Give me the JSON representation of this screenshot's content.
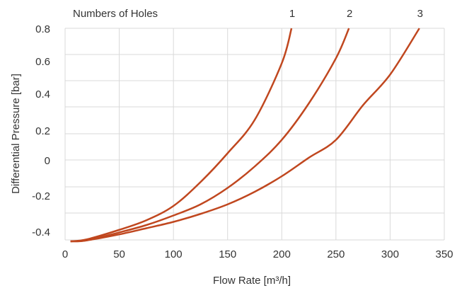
{
  "chart_data": {
    "type": "line",
    "title": "",
    "xlabel": "Flow Rate [m³/h]",
    "ylabel": "Differential Pressure [bar]",
    "legend_title": "Numbers of Holes",
    "xlim": [
      0,
      350
    ],
    "ylim": [
      -0.45,
      0.8
    ],
    "x_ticks": [
      "0",
      "50",
      "100",
      "150",
      "200",
      "250",
      "300",
      "350"
    ],
    "y_ticks": [
      "-0.4",
      "-0.2",
      "0",
      "0.2",
      "0.4",
      "0.6",
      "0.8"
    ],
    "grid": true,
    "line_color": "#c0471f",
    "series": [
      {
        "name": "1",
        "x": [
          5,
          20,
          50,
          75,
          100,
          125,
          150,
          175,
          200,
          209
        ],
        "y": [
          -0.45,
          -0.44,
          -0.39,
          -0.33,
          -0.24,
          -0.11,
          0.05,
          0.26,
          0.59,
          0.8
        ]
      },
      {
        "name": "2",
        "x": [
          5,
          20,
          50,
          75,
          100,
          125,
          150,
          175,
          200,
          225,
          250,
          262
        ],
        "y": [
          -0.45,
          -0.445,
          -0.405,
          -0.36,
          -0.3,
          -0.23,
          -0.14,
          -0.03,
          0.14,
          0.35,
          0.62,
          0.8
        ]
      },
      {
        "name": "3",
        "x": [
          5,
          20,
          50,
          75,
          100,
          125,
          150,
          175,
          200,
          225,
          250,
          275,
          300,
          327
        ],
        "y": [
          -0.45,
          -0.445,
          -0.415,
          -0.38,
          -0.34,
          -0.29,
          -0.23,
          -0.16,
          -0.08,
          0.02,
          0.14,
          0.34,
          0.52,
          0.8
        ]
      }
    ]
  }
}
